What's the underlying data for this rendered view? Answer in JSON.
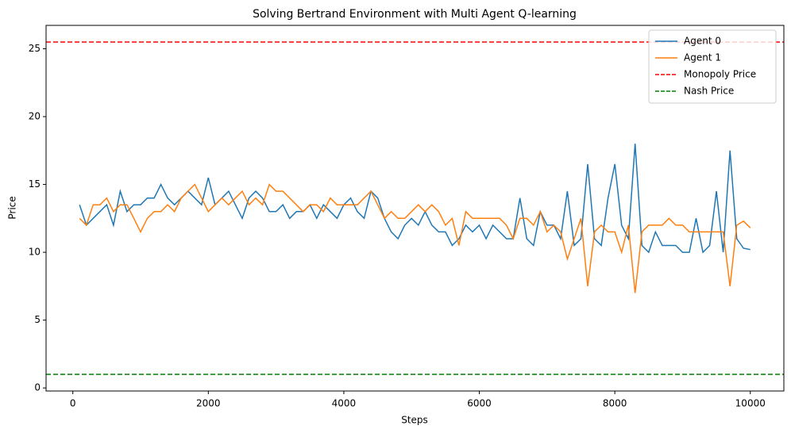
{
  "chart_data": {
    "type": "line",
    "title": "Solving Bertrand Environment with Multi Agent Q-learning",
    "x_label": "Steps",
    "y_label": "Price",
    "x": [
      100,
      200,
      300,
      400,
      500,
      600,
      700,
      800,
      900,
      1000,
      1100,
      1200,
      1300,
      1400,
      1500,
      1600,
      1700,
      1800,
      1900,
      2000,
      2100,
      2200,
      2300,
      2400,
      2500,
      2600,
      2700,
      2800,
      2900,
      3000,
      3100,
      3200,
      3300,
      3400,
      3500,
      3600,
      3700,
      3800,
      3900,
      4000,
      4100,
      4200,
      4300,
      4400,
      4500,
      4600,
      4700,
      4800,
      4900,
      5000,
      5100,
      5200,
      5300,
      5400,
      5500,
      5600,
      5700,
      5800,
      5900,
      6000,
      6100,
      6200,
      6300,
      6400,
      6500,
      6600,
      6700,
      6800,
      6900,
      7000,
      7100,
      7200,
      7300,
      7400,
      7500,
      7600,
      7700,
      7800,
      7900,
      8000,
      8100,
      8200,
      8300,
      8400,
      8500,
      8600,
      8700,
      8800,
      8900,
      9000,
      9100,
      9200,
      9300,
      9400,
      9500,
      9600,
      9700,
      9800,
      9900,
      10000
    ],
    "series": [
      {
        "name": "Agent 0",
        "color": "#1f77b4",
        "values": [
          13.5,
          12,
          12.5,
          13,
          13.5,
          12,
          14.5,
          13,
          13.5,
          13.5,
          14,
          14,
          15,
          14,
          13.5,
          14,
          14.5,
          14,
          13.5,
          15.5,
          13.5,
          14,
          14.5,
          13.5,
          12.5,
          14,
          14.5,
          14,
          13,
          13,
          13.5,
          12.5,
          13,
          13,
          13.5,
          12.5,
          13.5,
          13,
          12.5,
          13.5,
          14,
          13,
          12.5,
          14.5,
          14,
          12.5,
          11.5,
          11,
          12,
          12.5,
          12,
          13,
          12,
          11.5,
          11.5,
          10.5,
          11,
          12,
          11.5,
          12,
          11,
          12,
          11.5,
          11,
          11,
          14,
          11,
          10.5,
          13,
          12,
          12,
          11,
          14.5,
          10.5,
          11,
          16.5,
          11,
          10.5,
          14,
          16.5,
          12,
          11,
          18,
          10.5,
          10,
          11.5,
          10.5,
          10.5,
          10.5,
          10,
          10,
          12.5,
          10,
          10.5,
          14.5,
          10,
          17.5,
          11,
          10.3,
          10.2
        ]
      },
      {
        "name": "Agent 1",
        "color": "#ff7f0e",
        "values": [
          12.5,
          12,
          13.5,
          13.5,
          14,
          13,
          13.5,
          13.5,
          12.5,
          11.5,
          12.5,
          13,
          13,
          13.5,
          13,
          14,
          14.5,
          15,
          14,
          13,
          13.5,
          14,
          13.5,
          14,
          14.5,
          13.5,
          14,
          13.5,
          15,
          14.5,
          14.5,
          14,
          13.5,
          13,
          13.5,
          13.5,
          13,
          14,
          13.5,
          13.5,
          13.5,
          13.5,
          14,
          14.5,
          13.5,
          12.5,
          13,
          12.5,
          12.5,
          13,
          13.5,
          13,
          13.5,
          13,
          12,
          12.5,
          10.5,
          13,
          12.5,
          12.5,
          12.5,
          12.5,
          12.5,
          12,
          11,
          12.5,
          12.5,
          12,
          13,
          11.5,
          12,
          11.5,
          9.5,
          11,
          12.5,
          7.5,
          11.5,
          12,
          11.5,
          11.5,
          10,
          12,
          7,
          11.5,
          12,
          12,
          12,
          12.5,
          12,
          12,
          11.5,
          11.5,
          11.5,
          11.5,
          11.5,
          11.5,
          7.5,
          12,
          12.3,
          11.8
        ]
      }
    ],
    "hlines": [
      {
        "name": "Monopoly Price",
        "color": "#ff0000",
        "value": 25.5
      },
      {
        "name": "Nash Price",
        "color": "#008000",
        "value": 1
      }
    ],
    "xlim": [
      -395,
      10495
    ],
    "ylim": [
      -0.225,
      26.725
    ],
    "xticks": [
      0,
      2000,
      4000,
      6000,
      8000,
      10000
    ],
    "yticks": [
      0,
      5,
      10,
      15,
      20,
      25
    ],
    "legend": "upper right"
  }
}
